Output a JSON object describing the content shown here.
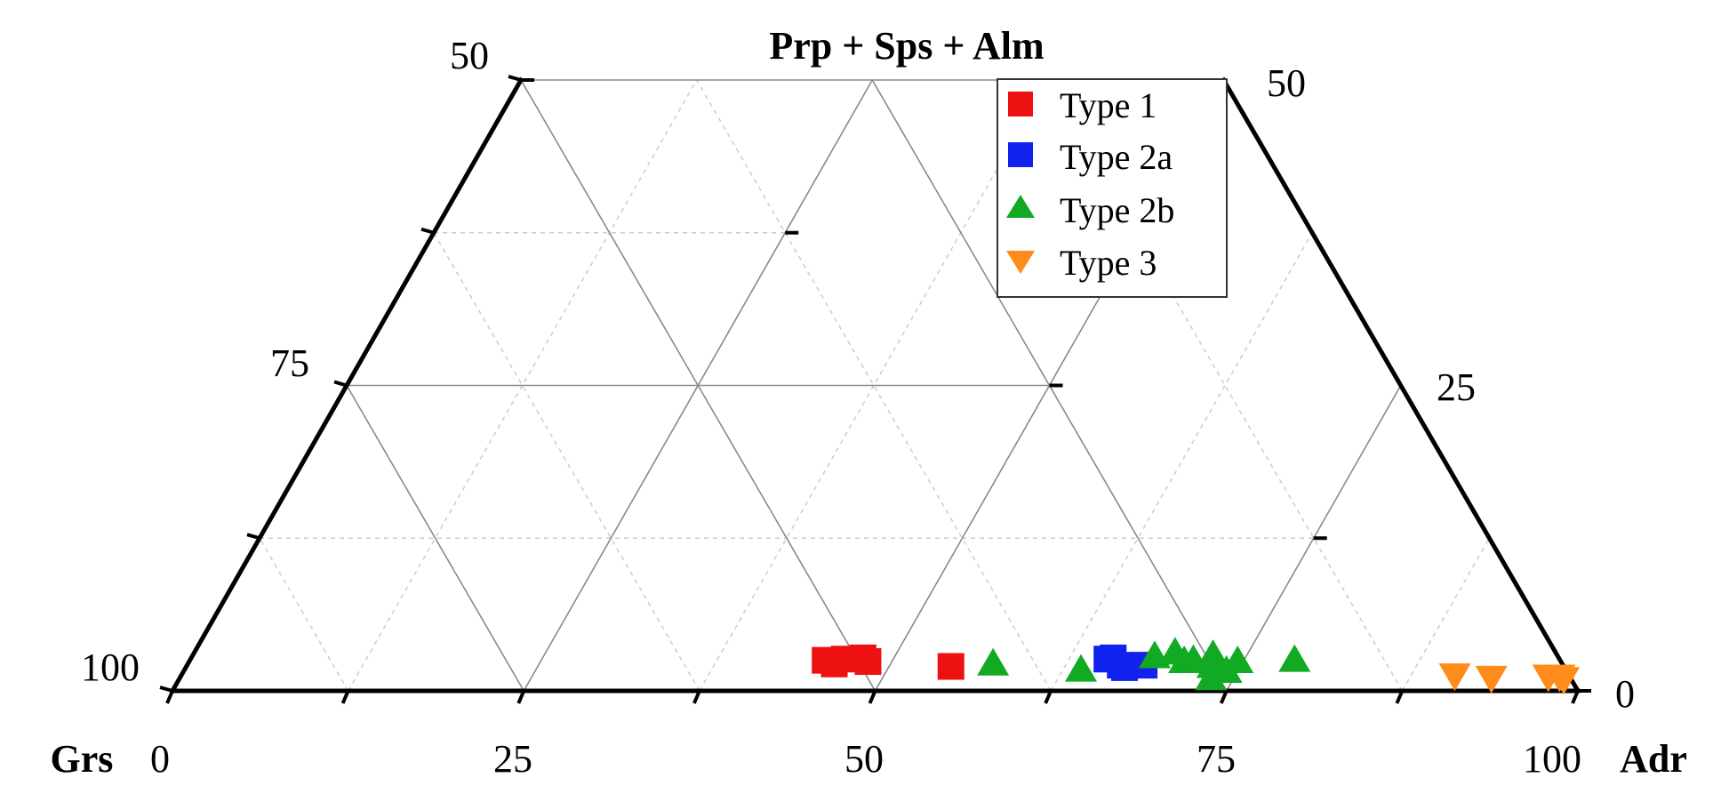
{
  "chart_data": {
    "type": "scatter",
    "subtype": "ternary",
    "title": "",
    "apex_labels": {
      "top": "Prp + Sps + Alm",
      "left": "Grs",
      "right": "Adr"
    },
    "axes": {
      "bottom": {
        "label": "Adr",
        "range": [
          0,
          100
        ],
        "ticks": [
          "0",
          "25",
          "50",
          "75",
          "100"
        ]
      },
      "left": {
        "label": "Grs",
        "range": [
          100,
          50
        ],
        "ticks": [
          "100",
          "75",
          "50"
        ]
      },
      "right": {
        "label": "Prp + Sps + Alm",
        "range": [
          0,
          50
        ],
        "ticks": [
          "0",
          "25",
          "50"
        ]
      }
    },
    "grid": true,
    "legend_position": "top-right",
    "series": [
      {
        "name": "Type 1",
        "marker": "square",
        "color": "#ee1111",
        "points": [
          {
            "adr": 45.2,
            "grs": 52.3,
            "apex": 2.5
          },
          {
            "adr": 46.0,
            "grs": 51.8,
            "apex": 2.2
          },
          {
            "adr": 46.5,
            "grs": 50.9,
            "apex": 2.6
          },
          {
            "adr": 47.8,
            "grs": 49.5,
            "apex": 2.7
          },
          {
            "adr": 48.3,
            "grs": 49.3,
            "apex": 2.4
          },
          {
            "adr": 54.4,
            "grs": 43.6,
            "apex": 2.0
          }
        ]
      },
      {
        "name": "Type 2a",
        "marker": "square",
        "color": "#1122ee",
        "points": [
          {
            "adr": 65.2,
            "grs": 32.2,
            "apex": 2.6
          },
          {
            "adr": 65.6,
            "grs": 31.7,
            "apex": 2.7
          },
          {
            "adr": 66.4,
            "grs": 31.5,
            "apex": 2.1
          },
          {
            "adr": 66.8,
            "grs": 31.3,
            "apex": 1.9
          },
          {
            "adr": 68.1,
            "grs": 29.8,
            "apex": 2.1
          }
        ]
      },
      {
        "name": "Type 2b",
        "marker": "triangle-up",
        "color": "#11aa22",
        "points": [
          {
            "adr": 57.3,
            "grs": 40.5,
            "apex": 2.2
          },
          {
            "adr": 63.8,
            "grs": 34.5,
            "apex": 1.7
          },
          {
            "adr": 68.5,
            "grs": 28.7,
            "apex": 2.8
          },
          {
            "adr": 69.8,
            "grs": 27.1,
            "apex": 3.1
          },
          {
            "adr": 70.8,
            "grs": 26.8,
            "apex": 2.4
          },
          {
            "adr": 71.4,
            "grs": 26.1,
            "apex": 2.5
          },
          {
            "adr": 72.6,
            "grs": 24.5,
            "apex": 2.9
          },
          {
            "adr": 73.0,
            "grs": 25.0,
            "apex": 2.0
          },
          {
            "adr": 74.2,
            "grs": 24.2,
            "apex": 1.6
          },
          {
            "adr": 74.6,
            "grs": 23.0,
            "apex": 2.4
          },
          {
            "adr": 73.4,
            "grs": 25.6,
            "apex": 1.0
          },
          {
            "adr": 78.6,
            "grs": 18.9,
            "apex": 2.5
          }
        ]
      },
      {
        "name": "Type 3",
        "marker": "triangle-down",
        "color": "#ff8c1a",
        "points": [
          {
            "adr": 90.6,
            "grs": 8.1,
            "apex": 1.3
          },
          {
            "adr": 93.3,
            "grs": 5.6,
            "apex": 1.1
          },
          {
            "adr": 97.3,
            "grs": 1.5,
            "apex": 1.2
          },
          {
            "adr": 98.1,
            "grs": 0.7,
            "apex": 1.2
          },
          {
            "adr": 98.5,
            "grs": 0.5,
            "apex": 1.0
          }
        ]
      }
    ]
  }
}
